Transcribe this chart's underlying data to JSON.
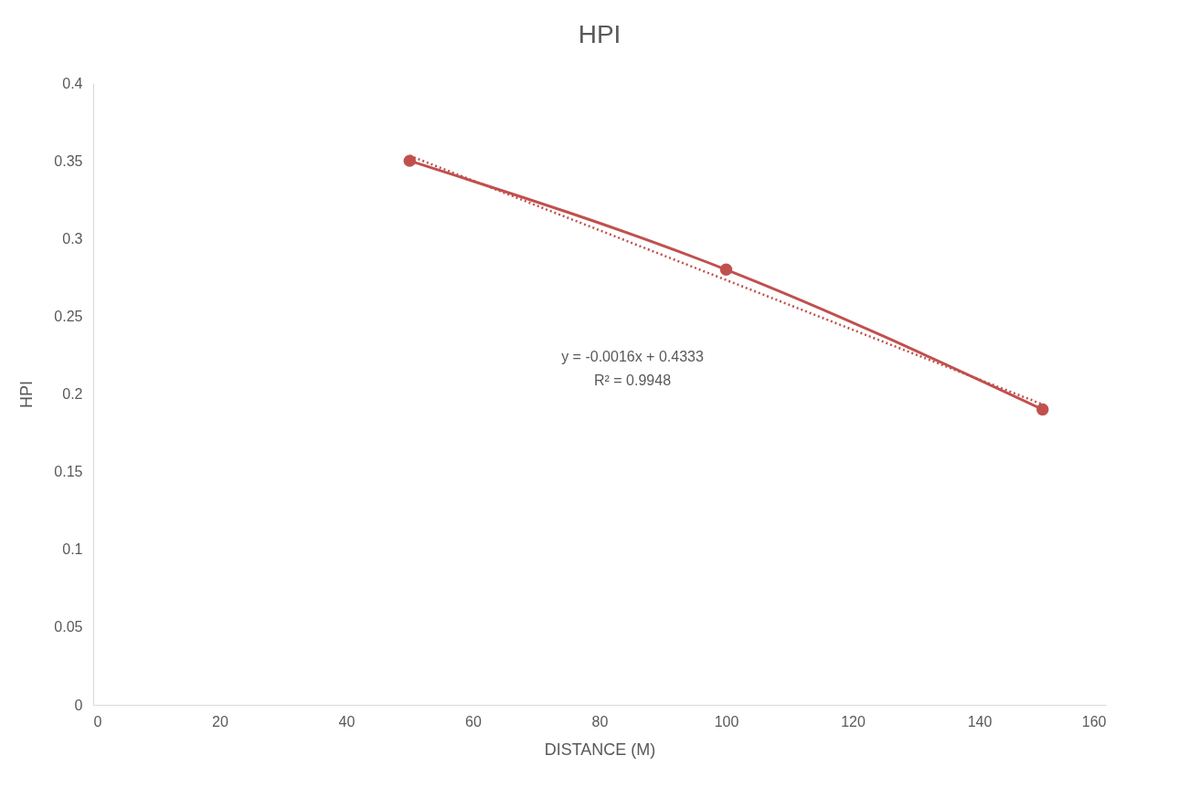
{
  "chart_data": {
    "type": "line",
    "title": "HPI",
    "xlabel": "DISTANCE (M)",
    "ylabel": "HPI",
    "x": [
      50,
      100,
      150
    ],
    "series": [
      {
        "color": "#c0504d",
        "values": [
          0.35,
          0.28,
          0.19
        ],
        "marker": "circle",
        "line_style": "solid"
      },
      {
        "type": "line",
        "color": "#c0504d",
        "x": [
          50,
          150
        ],
        "values": [
          0.3533,
          0.1933
        ],
        "marker": "none",
        "line_style": "dotted"
      }
    ],
    "xlim": [
      0,
      160
    ],
    "xticks": [
      0,
      20,
      40,
      60,
      80,
      100,
      120,
      140,
      160
    ],
    "ylim": [
      0,
      0.4
    ],
    "yticks": [
      0,
      0.05,
      0.1,
      0.15,
      0.2,
      0.25,
      0.3,
      0.35,
      0.4
    ],
    "grid": false,
    "annotations": [
      "y = -0.0016x + 0.4333",
      "R² = 0.9948"
    ]
  }
}
